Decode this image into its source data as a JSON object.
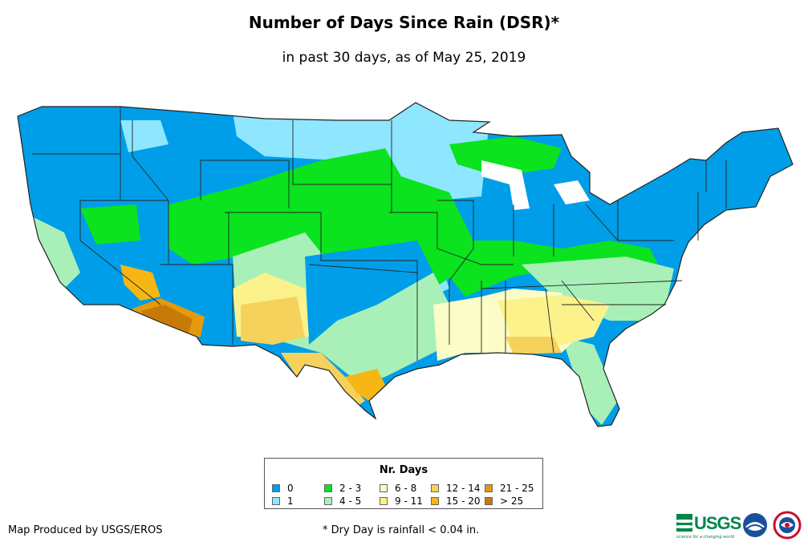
{
  "title": "Number of Days Since Rain (DSR)*",
  "subtitle": "in past 30 days, as of May 25, 2019",
  "legend": {
    "title": "Nr. Days",
    "items": [
      {
        "label": "0",
        "color": "#009ee8"
      },
      {
        "label": "1",
        "color": "#8ee6ff"
      },
      {
        "label": "2 - 3",
        "color": "#0ae31e"
      },
      {
        "label": "4 - 5",
        "color": "#a8f0b8"
      },
      {
        "label": "6 - 8",
        "color": "#fcfcc8"
      },
      {
        "label": "9 - 11",
        "color": "#fcf28c"
      },
      {
        "label": "12 - 14",
        "color": "#f6d25c"
      },
      {
        "label": "15 - 20",
        "color": "#f6b614"
      },
      {
        "label": "21 - 25",
        "color": "#e49a0a"
      },
      {
        "label": "> 25",
        "color": "#c87a08"
      }
    ]
  },
  "footer": {
    "producer": "Map Produced by USGS/EROS",
    "note": "* Dry Day is rainfall < 0.04 in."
  },
  "logos": {
    "usgs": "USGS",
    "usgs_tagline": "science for a changing world",
    "noaa": "noaa-logo",
    "nws": "nws-logo"
  }
}
